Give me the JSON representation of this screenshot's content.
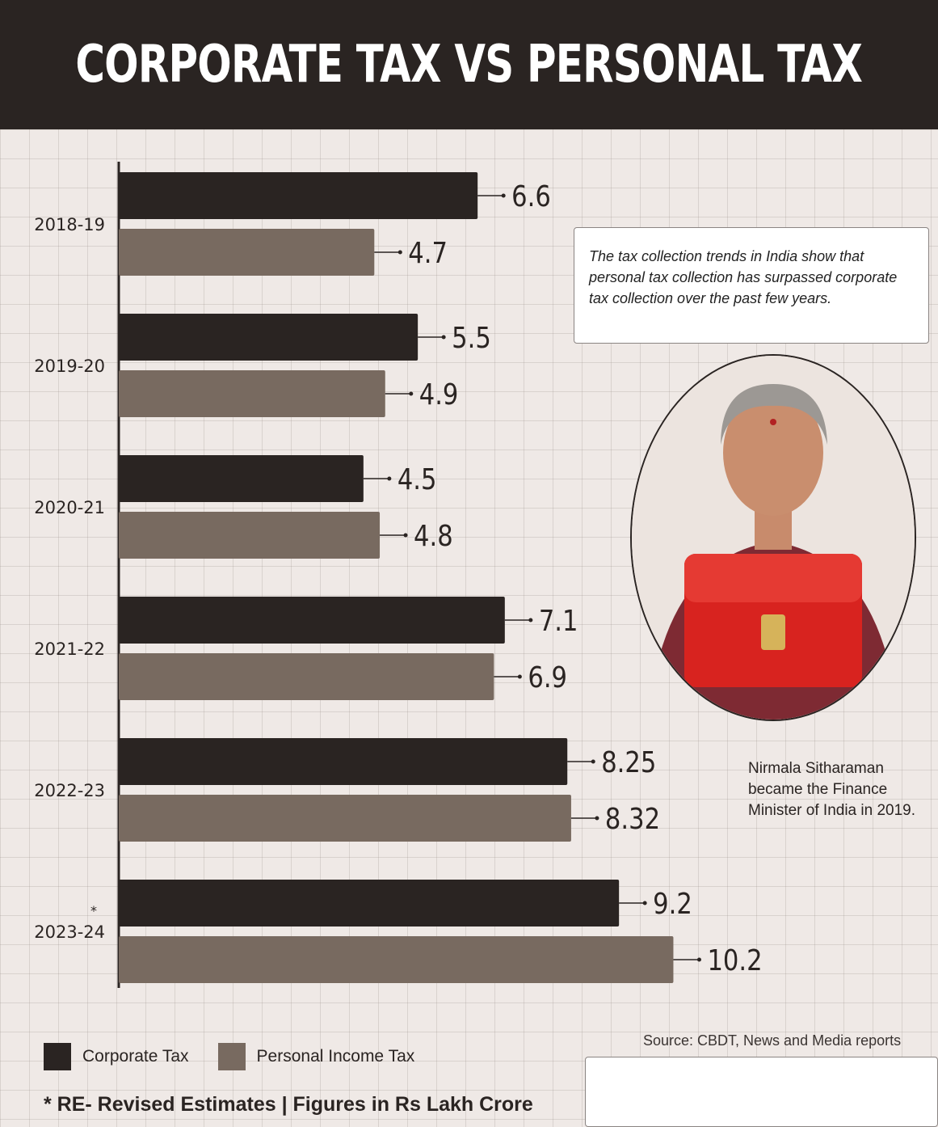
{
  "title": "CORPORATE TAX VS PERSONAL TAX",
  "note": "The tax collection trends in India show that personal tax collection has surpassed corporate tax collection over the past few years.",
  "photo": {
    "subject": "finance-minister-with-red-budget-bag",
    "accent": "#d8231f"
  },
  "caption": "Nirmala Sitharaman became the Finance Minister of India in 2019.",
  "legend": {
    "corporate": "Corporate Tax",
    "personal": "Personal Income Tax"
  },
  "source": "Source: CBDT, News and Media reports",
  "footnote": "* RE- Revised Estimates | Figures in Rs Lakh Crore",
  "colors": {
    "header": "#2a2422",
    "corporate": "#2a2422",
    "personal": "#786a60",
    "background": "#efe9e6"
  },
  "chart_data": {
    "type": "bar",
    "orientation": "horizontal",
    "categories": [
      "2018-19",
      "2019-20",
      "2020-21",
      "2021-22",
      "2022-23",
      "2023-24"
    ],
    "category_marks": [
      "",
      "",
      "",
      "",
      "",
      "*"
    ],
    "series": [
      {
        "name": "Corporate Tax",
        "values": [
          6.6,
          5.5,
          4.5,
          7.1,
          8.25,
          9.2
        ],
        "labels": [
          "6.6",
          "5.5",
          "4.5",
          "7.1",
          "8.25",
          "9.2"
        ]
      },
      {
        "name": "Personal Income Tax",
        "values": [
          4.7,
          4.9,
          4.8,
          6.9,
          8.32,
          10.2
        ],
        "labels": [
          "4.7",
          "4.9",
          "4.8",
          "6.9",
          "8.32",
          "10.2"
        ]
      }
    ],
    "xlim": [
      0,
      10.5
    ],
    "grid": true,
    "legend": "bottom-left"
  }
}
